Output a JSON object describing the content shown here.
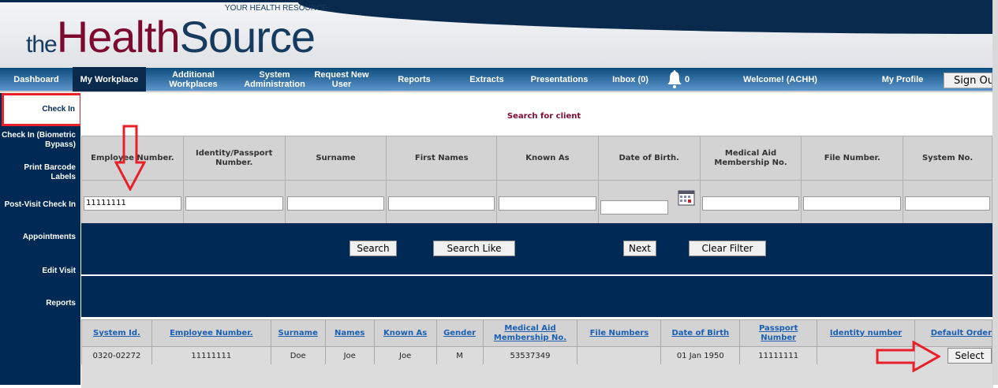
{
  "logo": {
    "the": "the",
    "health": "Health",
    "source": "Source",
    "tagline": "YOUR HEALTH RESOURCE"
  },
  "nav": {
    "items": [
      "Dashboard",
      "My Workplace",
      "Additional Workplaces",
      "System Administration",
      "Request New User",
      "Reports",
      "Extracts",
      "Presentations",
      "Inbox (0)"
    ],
    "active": "My Workplace",
    "bell_count": "0",
    "welcome": "Welcome! (ACHH)",
    "profile": "My Profile",
    "signout": "Sign Out"
  },
  "sidebar": {
    "items": [
      "Check In",
      "Check In (Biometric Bypass)",
      "Print Barcode Labels",
      "Post-Visit Check In",
      "Appointments",
      "Edit Visit",
      "Reports"
    ],
    "active": "Check In"
  },
  "search": {
    "title": "Search for client",
    "columns": [
      "Employee Number.",
      "Identity/Passport Number.",
      "Surname",
      "First Names",
      "Known As",
      "Date of Birth.",
      "Medical Aid Membership No.",
      "File Number.",
      "System No."
    ],
    "values": [
      "11111111",
      "",
      "",
      "",
      "",
      "",
      "",
      "",
      ""
    ]
  },
  "buttons": {
    "search": "Search",
    "search_like": "Search Like",
    "next": "Next",
    "clear_filter": "Clear Filter"
  },
  "results": {
    "columns": [
      "System Id.",
      "Employee Number.",
      "Surname",
      "Names",
      "Known As",
      "Gender",
      "Medical Aid Membership No.",
      "File Numbers",
      "Date of Birth",
      "Passport Number",
      "Identity number",
      "Default Order"
    ],
    "rows": [
      [
        "0320-02272",
        "11111111",
        "Doe",
        "Joe",
        "Joe",
        "M",
        "53537349",
        "",
        "01 Jan 1950",
        "11111111",
        ""
      ]
    ],
    "select_label": "Select"
  },
  "colors": {
    "navy": "#002a55",
    "maroon": "#7c0a2f",
    "highlight_red": "#e8202a",
    "link": "#1a5fb4"
  }
}
